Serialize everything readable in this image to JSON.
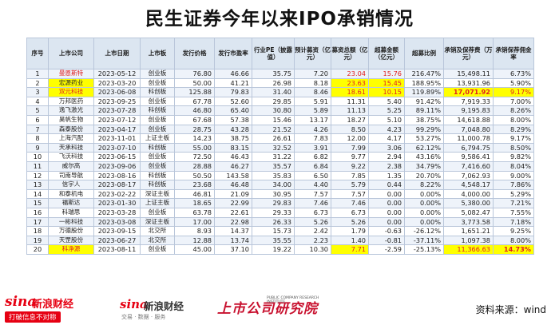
{
  "title": "民生证券今年以来IPO承销情况",
  "headers": [
    "序号",
    "上市公司",
    "上市日期",
    "上市板",
    "发行价格",
    "发行市盈率",
    "行业PE（披露值）",
    "预计募资（亿元）",
    "募资总额（亿元）",
    "超募金额（亿元）",
    "超募比例",
    "承销及保荐费（万元）",
    "承销保荐佣金率"
  ],
  "rows": [
    [
      "1",
      "曼恩斯特",
      "2023-05-12",
      "创业板",
      "76.80",
      "46.66",
      "35.75",
      "7.20",
      "23.04",
      "15.76",
      "216.47%",
      "15,498.11",
      "6.73%"
    ],
    [
      "2",
      "宏源药业",
      "2023-03-20",
      "创业板",
      "50.00",
      "41.21",
      "26.98",
      "8.18",
      "23.63",
      "15.45",
      "188.95%",
      "13,931.96",
      "5.90%"
    ],
    [
      "3",
      "双元科技",
      "2023-06-08",
      "科创板",
      "125.88",
      "79.83",
      "31.40",
      "8.46",
      "18.61",
      "10.15",
      "119.89%",
      "17,071.92",
      "9.17%"
    ],
    [
      "4",
      "万邦医药",
      "2023-09-25",
      "创业板",
      "67.78",
      "52.60",
      "29.85",
      "5.91",
      "11.31",
      "5.40",
      "91.42%",
      "7,919.33",
      "7.00%"
    ],
    [
      "5",
      "逸飞激光",
      "2023-07-28",
      "科创板",
      "46.80",
      "65.40",
      "30.80",
      "5.89",
      "11.13",
      "5.25",
      "89.11%",
      "9,195.83",
      "8.26%"
    ],
    [
      "6",
      "昊帆生物",
      "2023-07-12",
      "创业板",
      "67.68",
      "57.38",
      "15.46",
      "13.17",
      "18.27",
      "5.10",
      "38.75%",
      "14,618.88",
      "8.00%"
    ],
    [
      "7",
      "森泰股份",
      "2023-04-17",
      "创业板",
      "28.75",
      "43.28",
      "21.52",
      "4.26",
      "8.50",
      "4.23",
      "99.29%",
      "7,048.80",
      "8.29%"
    ],
    [
      "8",
      "上海汽配",
      "2023-11-01",
      "上证主板",
      "14.23",
      "38.75",
      "26.61",
      "7.83",
      "12.00",
      "4.17",
      "53.27%",
      "11,000.78",
      "9.17%"
    ],
    [
      "9",
      "天承科技",
      "2023-07-10",
      "科创板",
      "55.00",
      "83.15",
      "32.52",
      "3.91",
      "7.99",
      "3.06",
      "62.12%",
      "6,794.75",
      "8.50%"
    ],
    [
      "10",
      "飞沃科技",
      "2023-06-15",
      "创业板",
      "72.50",
      "46.43",
      "31.22",
      "6.82",
      "9.77",
      "2.94",
      "43.16%",
      "9,586.41",
      "9.82%"
    ],
    [
      "11",
      "威尔高",
      "2023-09-06",
      "创业板",
      "28.88",
      "46.27",
      "35.57",
      "6.84",
      "9.22",
      "2.38",
      "34.79%",
      "7,416.60",
      "8.04%"
    ],
    [
      "12",
      "司南导航",
      "2023-08-16",
      "科创板",
      "50.50",
      "143.58",
      "35.83",
      "6.50",
      "7.85",
      "1.35",
      "20.70%",
      "7,062.93",
      "9.00%"
    ],
    [
      "13",
      "信宇人",
      "2023-08-17",
      "科创板",
      "23.68",
      "46.48",
      "34.00",
      "4.40",
      "5.79",
      "0.44",
      "8.22%",
      "4,548.17",
      "7.86%"
    ],
    [
      "14",
      "和泰机电",
      "2023-02-22",
      "深证主板",
      "46.81",
      "21.09",
      "30.95",
      "7.57",
      "7.57",
      "0.00",
      "0.00%",
      "4,000.00",
      "5.29%"
    ],
    [
      "15",
      "福斯达",
      "2023-01-30",
      "上证主板",
      "18.65",
      "22.99",
      "29.83",
      "7.46",
      "7.46",
      "0.00",
      "0.00%",
      "5,380.00",
      "7.21%"
    ],
    [
      "16",
      "科瑞思",
      "2023-03-28",
      "创业板",
      "63.78",
      "22.61",
      "29.33",
      "6.73",
      "6.73",
      "0.00",
      "0.00%",
      "5,082.47",
      "7.55%"
    ],
    [
      "17",
      "一彬科技",
      "2023-03-08",
      "深证主板",
      "17.00",
      "22.98",
      "26.33",
      "5.26",
      "5.26",
      "0.00",
      "0.00%",
      "3,773.58",
      "7.18%"
    ],
    [
      "18",
      "万德股份",
      "2023-09-15",
      "北交所",
      "8.93",
      "14.37",
      "15.73",
      "2.42",
      "1.79",
      "-0.63",
      "-26.12%",
      "1,651.21",
      "9.25%"
    ],
    [
      "19",
      "天罡股份",
      "2023-06-27",
      "北交所",
      "12.88",
      "13.74",
      "35.55",
      "2.23",
      "1.40",
      "-0.81",
      "-37.11%",
      "1,097.38",
      "8.00%"
    ],
    [
      "20",
      "科净源",
      "2023-08-11",
      "创业板",
      "45.00",
      "37.10",
      "19.22",
      "10.30",
      "7.71",
      "-2.59",
      "-25.13%",
      "11,366.63",
      "14.73%"
    ]
  ],
  "footer": {
    "sina1_mark": "sina",
    "sina1_name": "新浪财经",
    "sina1_slogan": "打破信息不对称",
    "sina2_mark": "sina",
    "sina2_name": "新浪财经",
    "sina2_tags": "交易 · 数据 · 服务",
    "inst_name": "上市公司研究院",
    "inst_en": "PUBLIC COMPANY RESEARCH INSTITUTE",
    "source": "资料来源：wind"
  },
  "colors": {
    "header_bg": "#dce6f1",
    "row_alt_bg": "#eef3fa",
    "highlight": "#ffff00",
    "red_text": "#e02020",
    "brand_red": "#e60012"
  }
}
